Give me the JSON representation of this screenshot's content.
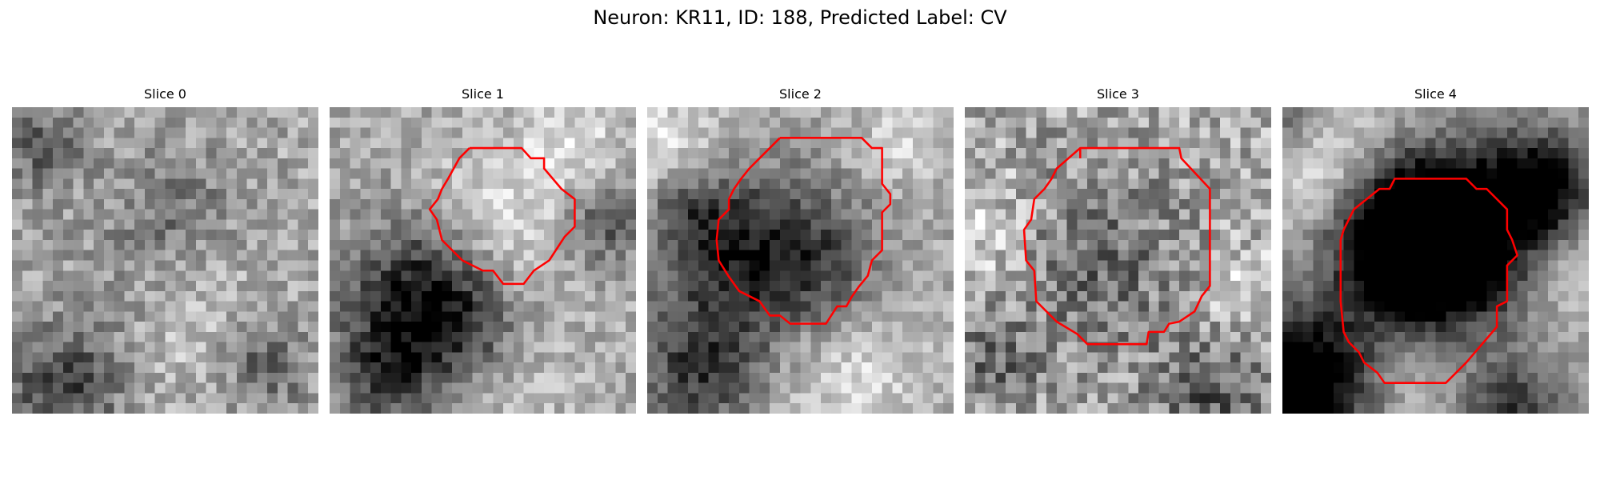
{
  "figure": {
    "suptitle": "Neuron: KR11, ID: 188, Predicted Label: CV",
    "overlay_color": "#ff0000",
    "colormap": "gray",
    "panels": [
      {
        "title": "Slice 0",
        "has_outline": false,
        "seed": 11
      },
      {
        "title": "Slice 1",
        "has_outline": true,
        "seed": 23
      },
      {
        "title": "Slice 2",
        "has_outline": true,
        "seed": 37
      },
      {
        "title": "Slice 3",
        "has_outline": true,
        "seed": 51
      },
      {
        "title": "Slice 4",
        "has_outline": true,
        "seed": 67
      }
    ]
  }
}
